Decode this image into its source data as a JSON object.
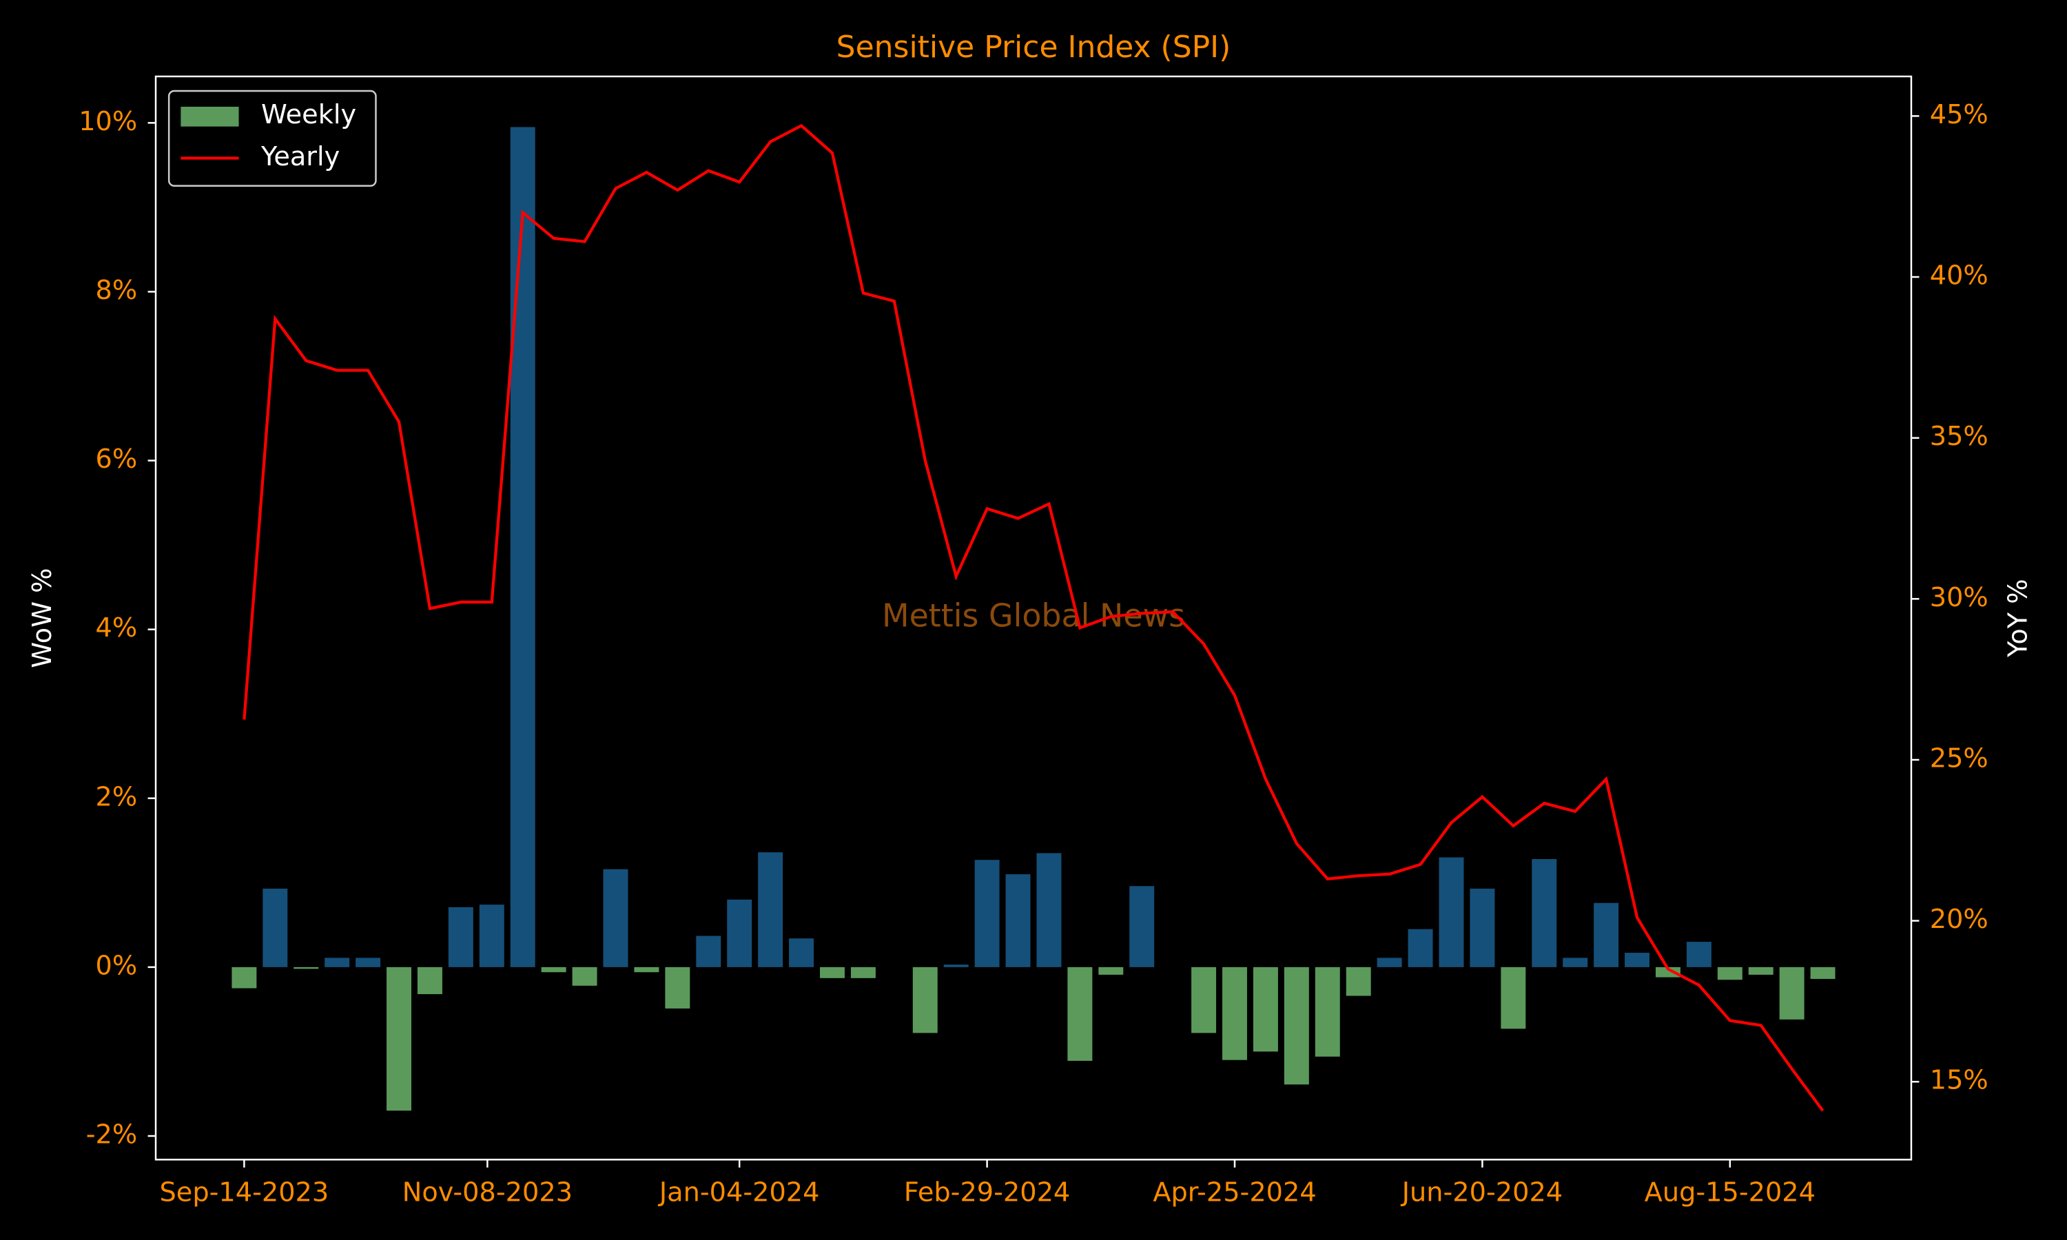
{
  "chart_data": {
    "type": "bar-line",
    "title": "Sensitive Price Index (SPI)",
    "watermark": "Mettis Global News",
    "ylabel": "WoW %",
    "y2label": "YoY %",
    "legend": "upper left",
    "x": [
      "2023-09-14",
      "2023-09-21",
      "2023-09-28",
      "2023-10-05",
      "2023-10-12",
      "2023-10-19",
      "2023-10-26",
      "2023-11-02",
      "2023-11-09",
      "2023-11-16",
      "2023-11-23",
      "2023-11-30",
      "2023-12-07",
      "2023-12-14",
      "2023-12-21",
      "2023-12-28",
      "2024-01-04",
      "2024-01-11",
      "2024-01-18",
      "2024-01-25",
      "2024-02-01",
      "2024-02-08",
      "2024-02-15",
      "2024-02-22",
      "2024-02-29",
      "2024-03-07",
      "2024-03-14",
      "2024-03-21",
      "2024-03-28",
      "2024-04-04",
      "2024-04-11",
      "2024-04-18",
      "2024-04-25",
      "2024-05-02",
      "2024-05-09",
      "2024-05-16",
      "2024-05-23",
      "2024-05-30",
      "2024-06-06",
      "2024-06-13",
      "2024-06-20",
      "2024-06-27",
      "2024-07-04",
      "2024-07-11",
      "2024-07-18",
      "2024-07-25",
      "2024-08-01",
      "2024-08-08",
      "2024-08-15",
      "2024-08-22",
      "2024-08-29",
      "2024-09-05"
    ],
    "xlim": [
      "2023-08-25",
      "2024-09-25"
    ],
    "xticks": [
      {
        "value": "2023-09-14",
        "label": "Sep-14-2023"
      },
      {
        "value": "2023-11-08",
        "label": "Nov-08-2023"
      },
      {
        "value": "2024-01-04",
        "label": "Jan-04-2024"
      },
      {
        "value": "2024-02-29",
        "label": "Feb-29-2024"
      },
      {
        "value": "2024-04-25",
        "label": "Apr-25-2024"
      },
      {
        "value": "2024-06-20",
        "label": "Jun-20-2024"
      },
      {
        "value": "2024-08-15",
        "label": "Aug-15-2024"
      }
    ],
    "ylim": [
      -2.28,
      10.55
    ],
    "yticks": [
      {
        "value": -2,
        "label": "-2%"
      },
      {
        "value": 0,
        "label": "0%"
      },
      {
        "value": 2,
        "label": "2%"
      },
      {
        "value": 4,
        "label": "4%"
      },
      {
        "value": 6,
        "label": "6%"
      },
      {
        "value": 8,
        "label": "8%"
      },
      {
        "value": 10,
        "label": "10%"
      }
    ],
    "y2lim": [
      12.58,
      46.23
    ],
    "y2ticks": [
      {
        "value": 15,
        "label": "15%"
      },
      {
        "value": 20,
        "label": "20%"
      },
      {
        "value": 25,
        "label": "25%"
      },
      {
        "value": 30,
        "label": "30%"
      },
      {
        "value": 35,
        "label": "35%"
      },
      {
        "value": 40,
        "label": "40%"
      },
      {
        "value": 45,
        "label": "45%"
      }
    ],
    "series": [
      {
        "name": "Weekly",
        "type": "bar",
        "color": "#5b9a5b",
        "up_color": "#15507a",
        "values": [
          -0.25,
          0.93,
          -0.02,
          0.11,
          0.11,
          -1.7,
          -0.32,
          0.71,
          0.74,
          9.95,
          -0.06,
          -0.22,
          1.16,
          -0.06,
          -0.49,
          0.37,
          0.8,
          1.36,
          0.34,
          -0.13,
          -0.13,
          0,
          -0.78,
          0.03,
          1.27,
          1.1,
          1.35,
          -1.11,
          -0.09,
          0.96,
          0,
          -0.78,
          -1.1,
          -1.0,
          -1.39,
          -1.06,
          -0.34,
          0.11,
          0.45,
          1.3,
          0.93,
          -0.73,
          1.28,
          0.11,
          0.76,
          0.17,
          -0.12,
          0.3,
          -0.15,
          -0.09,
          -0.62,
          -0.14
        ]
      },
      {
        "name": "Yearly",
        "type": "line",
        "axis": "y2",
        "color": "#ff0000",
        "values": [
          26.25,
          38.7,
          37.4,
          37.1,
          37.1,
          35.5,
          29.7,
          29.9,
          29.9,
          42.0,
          41.2,
          41.1,
          42.75,
          43.25,
          42.7,
          43.3,
          42.95,
          44.2,
          44.7,
          43.85,
          39.5,
          39.25,
          34.3,
          30.7,
          32.8,
          32.5,
          32.95,
          29.1,
          29.45,
          29.55,
          29.6,
          28.6,
          27.0,
          24.4,
          22.4,
          21.3,
          21.4,
          21.45,
          21.75,
          23.05,
          23.85,
          22.95,
          23.65,
          23.4,
          24.4,
          20.1,
          18.5,
          18.0,
          16.9,
          16.75,
          15.4,
          14.1
        ]
      }
    ]
  }
}
